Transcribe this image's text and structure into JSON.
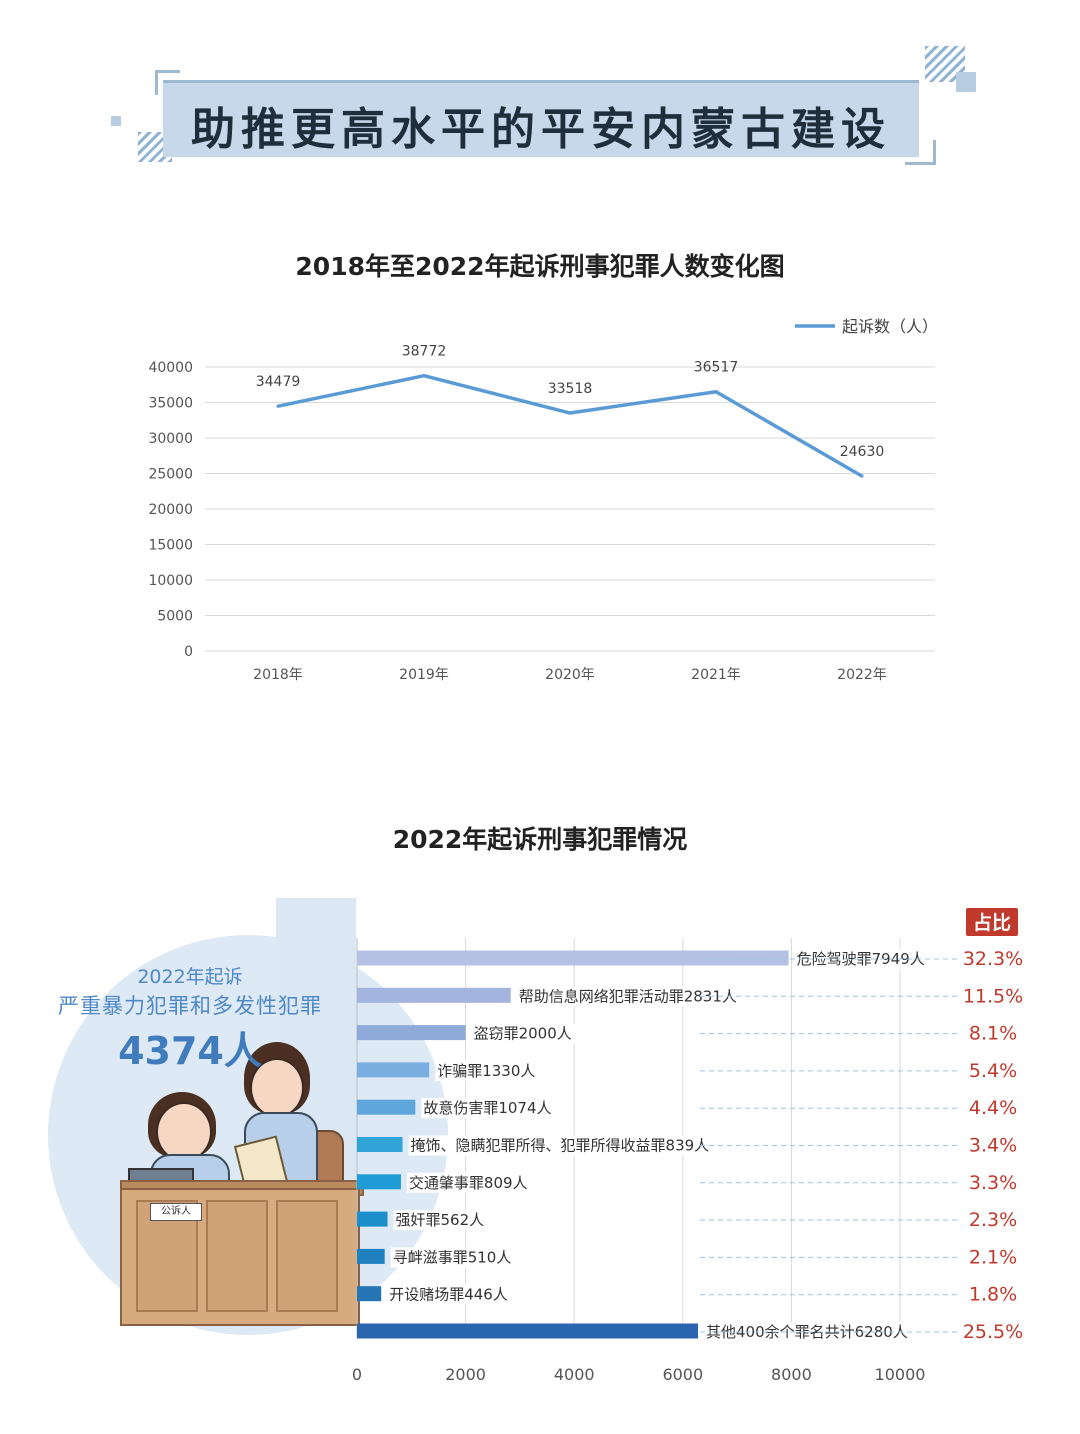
{
  "banner": {
    "title": "助推更高水平的平安内蒙古建设"
  },
  "colors": {
    "line": "#5b9bd5",
    "grid": "#d9d9d9",
    "banner_bg": "#c6d8ea",
    "percent_text": "#c0392b",
    "badge_bg": "#c0392b",
    "panel_text": "#4f88c6",
    "bars": [
      "#b4c0e4",
      "#a3b4df",
      "#8eaad9",
      "#7aaee0",
      "#5fa6dd",
      "#30a3d7",
      "#1f9bd5",
      "#1a8fc9",
      "#1f7fbf",
      "#2574b3",
      "#2a66b0"
    ]
  },
  "chart_data": [
    {
      "type": "line",
      "title": "2018年至2022年起诉刑事犯罪人数变化图",
      "x": [
        "2018年",
        "2019年",
        "2020年",
        "2021年",
        "2022年"
      ],
      "series": [
        {
          "name": "起诉数（人）",
          "values": [
            34479,
            38772,
            33518,
            36517,
            24630
          ]
        }
      ],
      "yticks": [
        "0",
        "5000",
        "10000",
        "15000",
        "20000",
        "25000",
        "30000",
        "35000",
        "40000"
      ],
      "ylim": [
        0,
        40000
      ],
      "grid": true,
      "legend_position": "top-right"
    },
    {
      "type": "bar",
      "orientation": "horizontal",
      "title": "2022年起诉刑事犯罪情况",
      "categories": [
        "危险驾驶罪",
        "帮助信息网络犯罪活动罪",
        "盗窃罪",
        "诈骗罪",
        "故意伤害罪",
        "掩饰、隐瞒犯罪所得、犯罪所得收益罪",
        "交通肇事罪",
        "强奸罪",
        "寻衅滋事罪",
        "开设赌场罪",
        "其他400余个罪名共计"
      ],
      "values": [
        7949,
        2831,
        2000,
        1330,
        1074,
        839,
        809,
        562,
        510,
        446,
        6280
      ],
      "labels": [
        "危险驾驶罪7949人",
        "帮助信息网络犯罪活动罪2831人",
        "盗窃罪2000人",
        "诈骗罪1330人",
        "故意伤害罪1074人",
        "掩饰、隐瞒犯罪所得、犯罪所得收益罪839人",
        "交通肇事罪809人",
        "强奸罪562人",
        "寻衅滋事罪510人",
        "开设赌场罪446人",
        "其他400余个罪名共计6280人"
      ],
      "percents": [
        "32.3%",
        "11.5%",
        "8.1%",
        "5.4%",
        "4.4%",
        "3.4%",
        "3.3%",
        "2.3%",
        "2.1%",
        "1.8%",
        "25.5%"
      ],
      "percent_header": "占比",
      "xticks": [
        "0",
        "2000",
        "4000",
        "6000",
        "8000",
        "10000"
      ],
      "xlim": [
        0,
        10000
      ],
      "grid": true
    }
  ],
  "panel": {
    "year_text": "2022年起诉",
    "desc_text": "严重暴力犯罪和多发性犯罪",
    "count_text": "4374人",
    "nameplate": "公诉人"
  }
}
